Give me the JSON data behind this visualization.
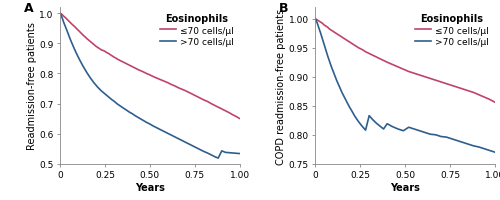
{
  "panel_A": {
    "label": "A",
    "ylabel": "Readmission-free patients",
    "xlabel": "Years",
    "ylim": [
      0.5,
      1.02
    ],
    "xlim": [
      0,
      1.0
    ],
    "yticks": [
      0.5,
      0.6,
      0.7,
      0.8,
      0.9,
      1.0
    ],
    "xticks": [
      0,
      0.25,
      0.5,
      0.75,
      1.0
    ],
    "legend_title": "Eosinophils",
    "legend_labels": [
      "≤70 cells/µl",
      ">70 cells/µl"
    ],
    "line_colors": [
      "#c0436a",
      "#2e5e8e"
    ],
    "curve_low_x": [
      0.0,
      0.005,
      0.01,
      0.015,
      0.02,
      0.03,
      0.04,
      0.05,
      0.06,
      0.07,
      0.08,
      0.09,
      0.1,
      0.11,
      0.12,
      0.13,
      0.14,
      0.15,
      0.16,
      0.17,
      0.18,
      0.19,
      0.2,
      0.21,
      0.22,
      0.23,
      0.24,
      0.25,
      0.26,
      0.27,
      0.28,
      0.29,
      0.3,
      0.31,
      0.32,
      0.33,
      0.34,
      0.35,
      0.36,
      0.37,
      0.38,
      0.39,
      0.4,
      0.42,
      0.44,
      0.46,
      0.48,
      0.5,
      0.52,
      0.54,
      0.56,
      0.58,
      0.6,
      0.62,
      0.64,
      0.66,
      0.68,
      0.7,
      0.72,
      0.74,
      0.76,
      0.78,
      0.8,
      0.82,
      0.84,
      0.86,
      0.88,
      0.9,
      0.92,
      0.94,
      0.96,
      0.98,
      1.0
    ],
    "curve_low_y": [
      1.0,
      0.998,
      0.996,
      0.993,
      0.99,
      0.985,
      0.979,
      0.973,
      0.967,
      0.961,
      0.956,
      0.95,
      0.944,
      0.938,
      0.932,
      0.926,
      0.921,
      0.915,
      0.91,
      0.905,
      0.9,
      0.895,
      0.89,
      0.886,
      0.882,
      0.878,
      0.876,
      0.873,
      0.869,
      0.866,
      0.862,
      0.858,
      0.854,
      0.851,
      0.847,
      0.844,
      0.841,
      0.838,
      0.835,
      0.832,
      0.829,
      0.826,
      0.823,
      0.817,
      0.811,
      0.806,
      0.8,
      0.795,
      0.789,
      0.784,
      0.779,
      0.774,
      0.769,
      0.763,
      0.758,
      0.752,
      0.747,
      0.742,
      0.736,
      0.73,
      0.724,
      0.718,
      0.712,
      0.707,
      0.7,
      0.694,
      0.688,
      0.682,
      0.676,
      0.67,
      0.663,
      0.657,
      0.65
    ],
    "curve_high_x": [
      0.0,
      0.005,
      0.01,
      0.015,
      0.02,
      0.03,
      0.04,
      0.05,
      0.06,
      0.07,
      0.08,
      0.09,
      0.1,
      0.11,
      0.12,
      0.13,
      0.14,
      0.15,
      0.16,
      0.17,
      0.18,
      0.19,
      0.2,
      0.21,
      0.22,
      0.23,
      0.24,
      0.25,
      0.26,
      0.27,
      0.28,
      0.29,
      0.3,
      0.31,
      0.32,
      0.33,
      0.34,
      0.35,
      0.36,
      0.37,
      0.38,
      0.39,
      0.4,
      0.42,
      0.44,
      0.46,
      0.48,
      0.5,
      0.52,
      0.54,
      0.56,
      0.58,
      0.6,
      0.62,
      0.64,
      0.66,
      0.68,
      0.7,
      0.72,
      0.74,
      0.76,
      0.78,
      0.8,
      0.82,
      0.84,
      0.86,
      0.88,
      0.9,
      0.92,
      0.94,
      0.96,
      0.98,
      1.0
    ],
    "curve_high_y": [
      1.0,
      0.994,
      0.987,
      0.979,
      0.97,
      0.955,
      0.94,
      0.924,
      0.909,
      0.895,
      0.881,
      0.868,
      0.856,
      0.844,
      0.833,
      0.822,
      0.812,
      0.802,
      0.793,
      0.784,
      0.776,
      0.768,
      0.761,
      0.754,
      0.748,
      0.742,
      0.737,
      0.732,
      0.727,
      0.722,
      0.717,
      0.712,
      0.708,
      0.703,
      0.698,
      0.694,
      0.69,
      0.686,
      0.682,
      0.678,
      0.674,
      0.67,
      0.667,
      0.659,
      0.652,
      0.645,
      0.638,
      0.632,
      0.625,
      0.619,
      0.613,
      0.607,
      0.601,
      0.595,
      0.589,
      0.583,
      0.577,
      0.571,
      0.565,
      0.559,
      0.553,
      0.547,
      0.541,
      0.536,
      0.53,
      0.524,
      0.519,
      0.543,
      0.538,
      0.537,
      0.536,
      0.535,
      0.534
    ]
  },
  "panel_B": {
    "label": "B",
    "ylabel": "COPD readmission-free patients",
    "xlabel": "Years",
    "ylim": [
      0.75,
      1.02
    ],
    "xlim": [
      0,
      1.0
    ],
    "yticks": [
      0.75,
      0.8,
      0.85,
      0.9,
      0.95,
      1.0
    ],
    "xticks": [
      0,
      0.25,
      0.5,
      0.75,
      1.0
    ],
    "legend_title": "Eosinophils",
    "legend_labels": [
      "≤70 cells/µl",
      ">70 cells/µl"
    ],
    "line_colors": [
      "#c0436a",
      "#2e5e8e"
    ],
    "curve_low_x": [
      0.0,
      0.005,
      0.01,
      0.015,
      0.02,
      0.03,
      0.04,
      0.05,
      0.06,
      0.07,
      0.08,
      0.09,
      0.1,
      0.11,
      0.12,
      0.13,
      0.14,
      0.15,
      0.16,
      0.17,
      0.18,
      0.19,
      0.2,
      0.22,
      0.24,
      0.26,
      0.28,
      0.3,
      0.32,
      0.34,
      0.36,
      0.38,
      0.4,
      0.43,
      0.46,
      0.49,
      0.52,
      0.55,
      0.58,
      0.61,
      0.64,
      0.67,
      0.7,
      0.73,
      0.76,
      0.79,
      0.82,
      0.85,
      0.88,
      0.91,
      0.94,
      0.97,
      1.0
    ],
    "curve_low_y": [
      1.0,
      0.999,
      0.998,
      0.997,
      0.996,
      0.994,
      0.992,
      0.989,
      0.987,
      0.985,
      0.982,
      0.98,
      0.978,
      0.976,
      0.974,
      0.972,
      0.97,
      0.968,
      0.966,
      0.964,
      0.962,
      0.96,
      0.958,
      0.954,
      0.95,
      0.947,
      0.943,
      0.94,
      0.937,
      0.934,
      0.931,
      0.928,
      0.925,
      0.921,
      0.917,
      0.913,
      0.909,
      0.906,
      0.903,
      0.9,
      0.897,
      0.894,
      0.891,
      0.888,
      0.885,
      0.882,
      0.879,
      0.876,
      0.873,
      0.869,
      0.865,
      0.861,
      0.856
    ],
    "curve_high_x": [
      0.0,
      0.005,
      0.01,
      0.015,
      0.02,
      0.03,
      0.04,
      0.05,
      0.06,
      0.07,
      0.08,
      0.09,
      0.1,
      0.11,
      0.12,
      0.13,
      0.14,
      0.15,
      0.16,
      0.17,
      0.18,
      0.19,
      0.2,
      0.22,
      0.24,
      0.26,
      0.28,
      0.3,
      0.32,
      0.34,
      0.36,
      0.38,
      0.4,
      0.43,
      0.46,
      0.49,
      0.52,
      0.55,
      0.58,
      0.61,
      0.64,
      0.67,
      0.7,
      0.73,
      0.76,
      0.79,
      0.82,
      0.85,
      0.88,
      0.91,
      0.94,
      0.97,
      1.0
    ],
    "curve_high_y": [
      1.0,
      0.997,
      0.993,
      0.989,
      0.984,
      0.975,
      0.965,
      0.955,
      0.945,
      0.935,
      0.926,
      0.917,
      0.909,
      0.901,
      0.893,
      0.886,
      0.879,
      0.872,
      0.866,
      0.86,
      0.854,
      0.848,
      0.843,
      0.832,
      0.823,
      0.815,
      0.808,
      0.833,
      0.826,
      0.82,
      0.815,
      0.81,
      0.819,
      0.814,
      0.81,
      0.807,
      0.813,
      0.81,
      0.807,
      0.804,
      0.801,
      0.8,
      0.797,
      0.796,
      0.793,
      0.79,
      0.787,
      0.784,
      0.781,
      0.779,
      0.776,
      0.773,
      0.77
    ]
  },
  "background_color": "#ffffff",
  "axes_background": "#ffffff",
  "linewidth": 1.2,
  "fontsize_label": 7,
  "fontsize_tick": 6.5,
  "fontsize_legend_title": 7,
  "fontsize_legend": 6.5,
  "fontsize_panel_label": 9
}
